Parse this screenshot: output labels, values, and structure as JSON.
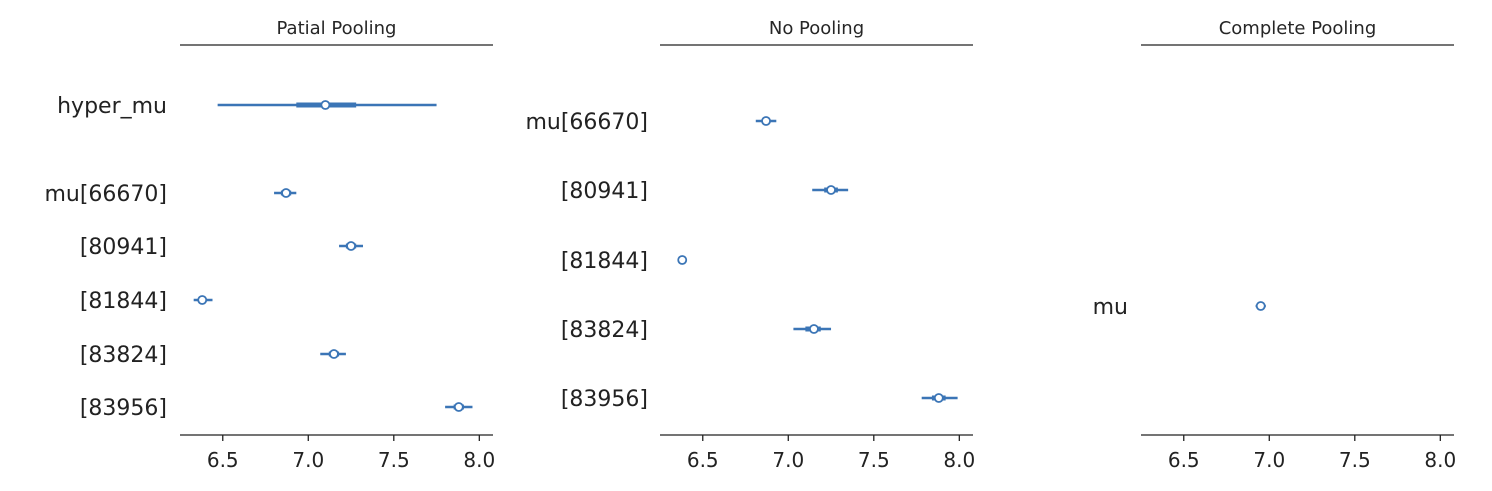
{
  "colors": {
    "series": "#3b75b6",
    "text": "#222222"
  },
  "chart_data": [
    {
      "type": "forest",
      "title": "Patial Pooling",
      "xlim": [
        6.25,
        8.08
      ],
      "xticks": [
        "6.5",
        "7.0",
        "7.5",
        "8.0"
      ],
      "rows": [
        {
          "label": "hyper_mu",
          "mean": 7.1,
          "hdi_low": 6.47,
          "hdi_high": 7.75,
          "iqr_low": 6.93,
          "iqr_high": 7.28
        },
        {
          "label": "mu[66670]",
          "mean": 6.87,
          "hdi_low": 6.8,
          "hdi_high": 6.93,
          "iqr_low": 6.84,
          "iqr_high": 6.9
        },
        {
          "label": "[80941]",
          "mean": 7.25,
          "hdi_low": 7.18,
          "hdi_high": 7.32,
          "iqr_low": 7.22,
          "iqr_high": 7.28
        },
        {
          "label": "[81844]",
          "mean": 6.38,
          "hdi_low": 6.33,
          "hdi_high": 6.44,
          "iqr_low": 6.36,
          "iqr_high": 6.4
        },
        {
          "label": "[83824]",
          "mean": 7.15,
          "hdi_low": 7.07,
          "hdi_high": 7.22,
          "iqr_low": 7.12,
          "iqr_high": 7.18
        },
        {
          "label": "[83956]",
          "mean": 7.88,
          "hdi_low": 7.8,
          "hdi_high": 7.96,
          "iqr_low": 7.85,
          "iqr_high": 7.91
        }
      ]
    },
    {
      "type": "forest",
      "title": "No Pooling",
      "xlim": [
        6.25,
        8.08
      ],
      "xticks": [
        "6.5",
        "7.0",
        "7.5",
        "8.0"
      ],
      "rows": [
        {
          "label": "mu[66670]",
          "mean": 6.87,
          "hdi_low": 6.81,
          "hdi_high": 6.93,
          "iqr_low": 6.85,
          "iqr_high": 6.89
        },
        {
          "label": "[80941]",
          "mean": 7.25,
          "hdi_low": 7.14,
          "hdi_high": 7.35,
          "iqr_low": 7.21,
          "iqr_high": 7.29
        },
        {
          "label": "[81844]",
          "mean": 6.38,
          "hdi_low": 6.37,
          "hdi_high": 6.39,
          "iqr_low": 6.38,
          "iqr_high": 6.38
        },
        {
          "label": "[83824]",
          "mean": 7.15,
          "hdi_low": 7.03,
          "hdi_high": 7.25,
          "iqr_low": 7.1,
          "iqr_high": 7.19
        },
        {
          "label": "[83956]",
          "mean": 7.88,
          "hdi_low": 7.78,
          "hdi_high": 7.99,
          "iqr_low": 7.84,
          "iqr_high": 7.92
        }
      ]
    },
    {
      "type": "forest",
      "title": "Complete Pooling",
      "xlim": [
        6.25,
        8.08
      ],
      "xticks": [
        "6.5",
        "7.0",
        "7.5",
        "8.0"
      ],
      "rows": [
        {
          "label": "mu",
          "mean": 6.95,
          "hdi_low": 6.92,
          "hdi_high": 6.98,
          "iqr_low": 6.94,
          "iqr_high": 6.96
        }
      ]
    }
  ]
}
